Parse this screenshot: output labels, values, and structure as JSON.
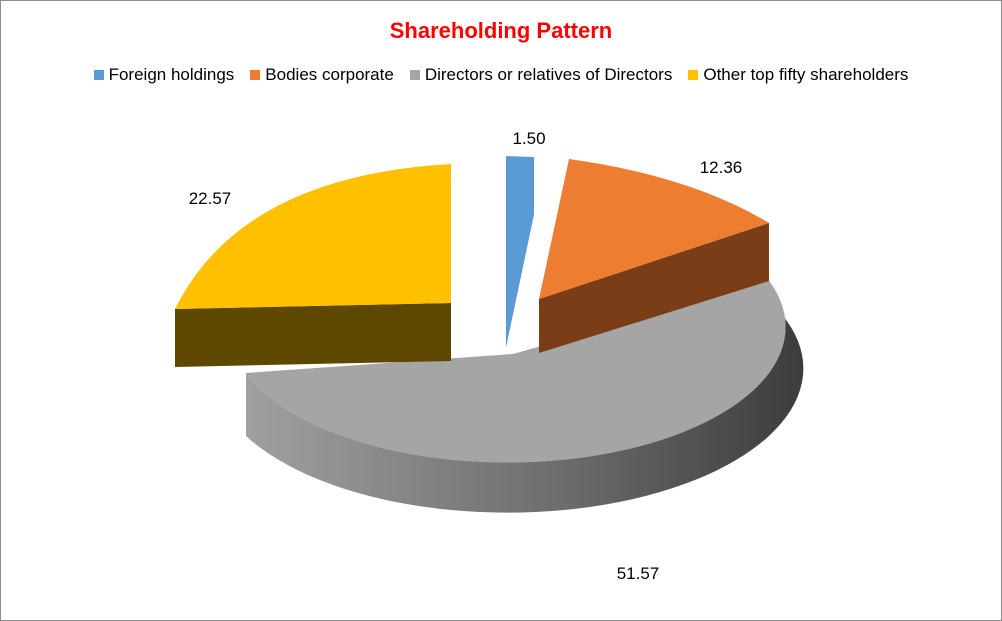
{
  "chart_data": {
    "type": "pie",
    "title": "Shareholding Pattern",
    "legend_position": "top",
    "series": [
      {
        "name": "Foreign holdings",
        "value": 1.5,
        "label": "1.50",
        "color": "#5b9bd5",
        "side_color": "#3a6f9f"
      },
      {
        "name": "Bodies corporate",
        "value": 12.36,
        "label": "12.36",
        "color": "#ed7d31",
        "side_color": "#7a3d18"
      },
      {
        "name": "Directors or relatives of Directors",
        "value": 51.57,
        "label": "51.57",
        "color": "#a5a5a5",
        "side_color": "#7a7a7a"
      },
      {
        "name": "Other top fifty shareholders",
        "value": 22.57,
        "label": "22.57",
        "color": "#ffc000",
        "side_color": "#5e4800"
      }
    ]
  }
}
